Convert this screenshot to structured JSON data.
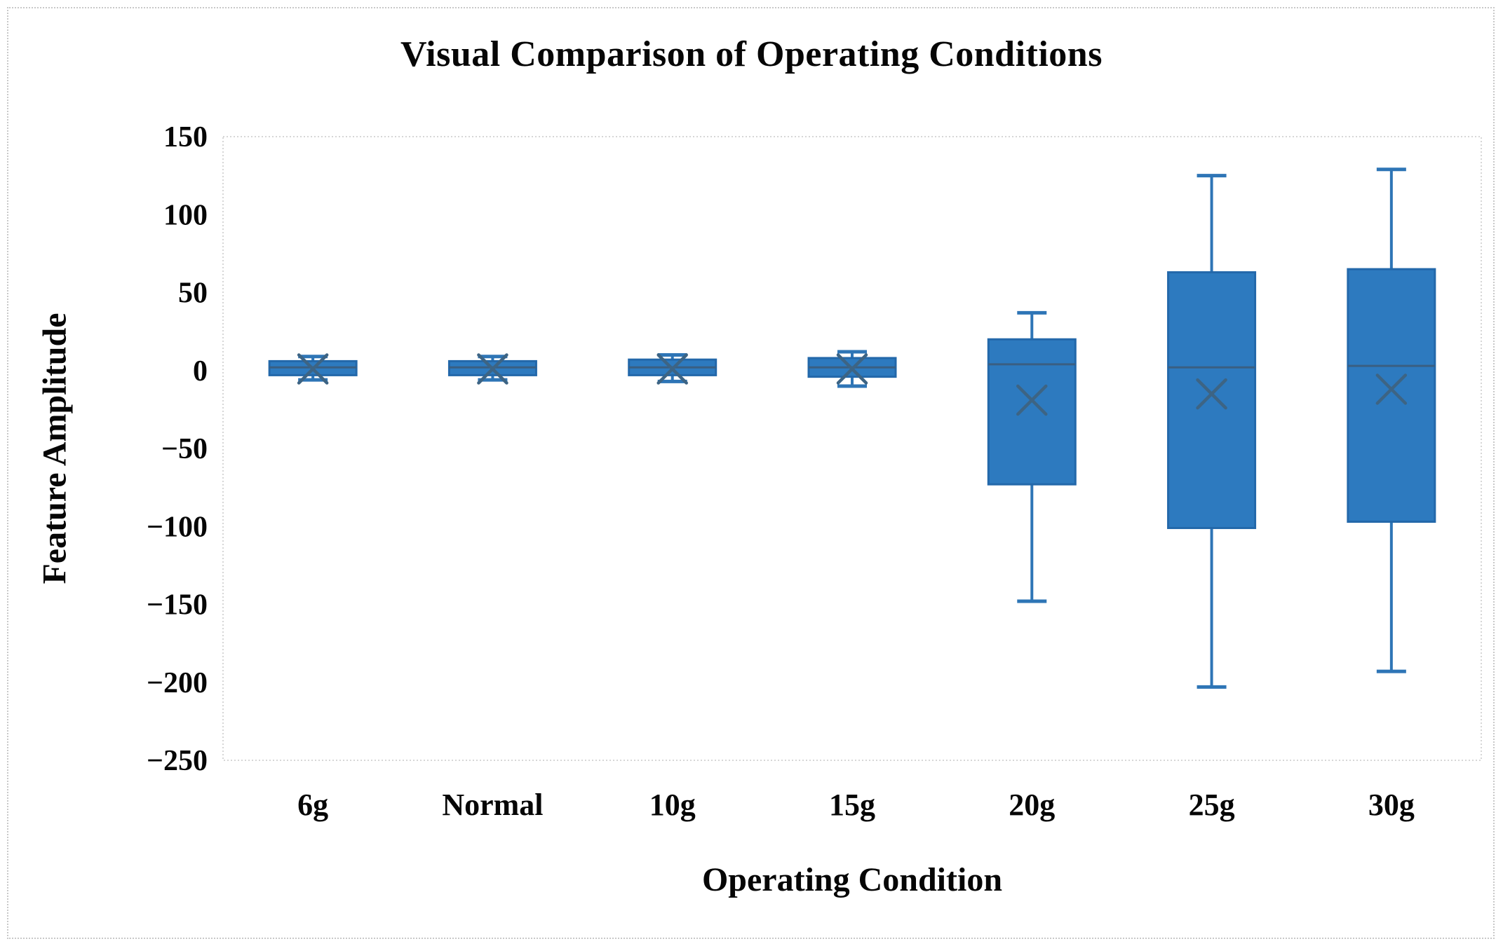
{
  "figure": {
    "title": "Visual Comparison of Operating Conditions",
    "x_axis_title": "Operating Condition",
    "y_axis_title": "Feature Amplitude"
  },
  "chart_data": {
    "type": "boxplot",
    "title": "Visual Comparison of Operating Conditions",
    "xlabel": "Operating Condition",
    "ylabel": "Feature Amplitude",
    "categories": [
      "6g",
      "Normal",
      "10g",
      "15g",
      "20g",
      "25g",
      "30g"
    ],
    "ylim": [
      -250,
      150
    ],
    "yticks": [
      150,
      100,
      50,
      0,
      -50,
      -100,
      -150,
      -200,
      -250
    ],
    "grid": false,
    "legend": "none",
    "series": [
      {
        "name": "6g",
        "min": -6,
        "q1": -3,
        "median": 2,
        "q3": 6,
        "max": 9,
        "mean": 1
      },
      {
        "name": "Normal",
        "min": -6,
        "q1": -3,
        "median": 2,
        "q3": 6,
        "max": 9,
        "mean": 1
      },
      {
        "name": "10g",
        "min": -7,
        "q1": -3,
        "median": 2,
        "q3": 7,
        "max": 10,
        "mean": 1
      },
      {
        "name": "15g",
        "min": -10,
        "q1": -4,
        "median": 2,
        "q3": 8,
        "max": 12,
        "mean": 1
      },
      {
        "name": "20g",
        "min": -148,
        "q1": -73,
        "median": 4,
        "q3": 20,
        "max": 37,
        "mean": -19
      },
      {
        "name": "25g",
        "min": -203,
        "q1": -101,
        "median": 2,
        "q3": 63,
        "max": 125,
        "mean": -15
      },
      {
        "name": "30g",
        "min": -193,
        "q1": -97,
        "median": 3,
        "q3": 65,
        "max": 129,
        "mean": -12
      }
    ],
    "colors": {
      "box_fill": "#2d7abf",
      "box_stroke": "#2368aa",
      "whisker": "#2e75b6",
      "median_line": "#3a5f82",
      "mean_marker": "#3d6484",
      "plot_border": "#d6d6d6",
      "figure_border": "#c8c8c8",
      "text": "#060606",
      "background": "#ffffff"
    }
  }
}
